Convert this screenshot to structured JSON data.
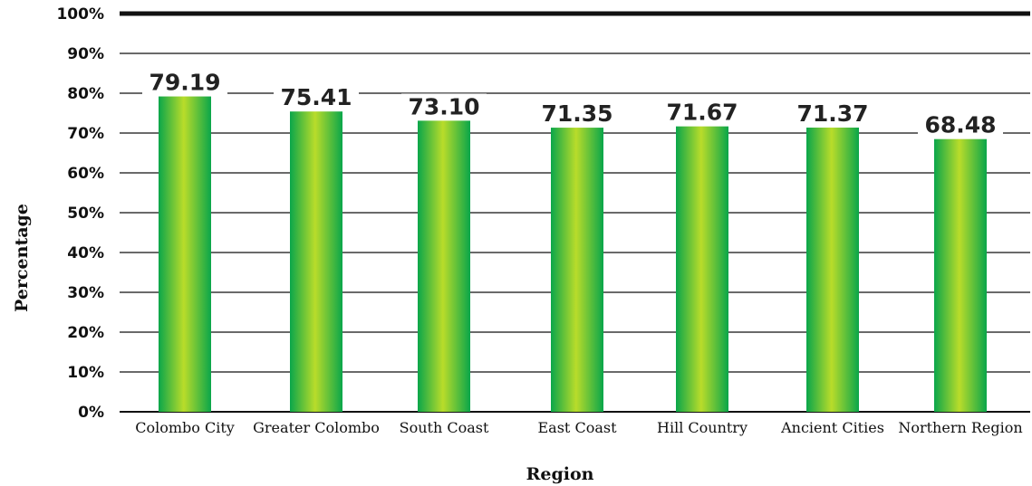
{
  "chart_data": {
    "type": "bar",
    "categories": [
      "Colombo City",
      "Greater Colombo",
      "South Coast",
      "East Coast",
      "Hill Country",
      "Ancient Cities",
      "Northern Region"
    ],
    "values": [
      79.19,
      75.41,
      73.1,
      71.35,
      71.67,
      71.37,
      68.48
    ],
    "value_labels": [
      "79.19",
      "75.41",
      "73.10",
      "71.35",
      "71.67",
      "71.37",
      "68.48"
    ],
    "title": "",
    "xlabel": "Region",
    "ylabel": "Percentage",
    "ylim": [
      0,
      100
    ],
    "yticks": [
      "0%",
      "10%",
      "20%",
      "30%",
      "40%",
      "50%",
      "60%",
      "70%",
      "80%",
      "90%",
      "100%"
    ],
    "grid": true,
    "legend": "none",
    "colors": {
      "bar_edge": "#0aa64a",
      "bar_center": "#b9dc2a",
      "grid": "#111111",
      "top_line": "#111111"
    }
  }
}
